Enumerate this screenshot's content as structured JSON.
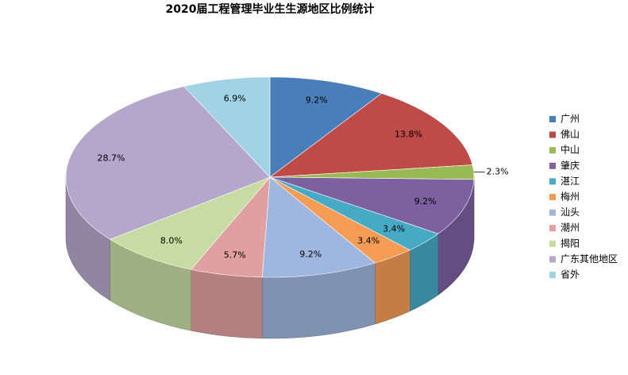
{
  "chart_data": {
    "type": "pie3d",
    "title": "2020届工程管理毕业生生源地区比例统计",
    "categories": [
      "广州",
      "佛山",
      "中山",
      "肇庆",
      "湛江",
      "梅州",
      "汕头",
      "潮州",
      "揭阳",
      "广东其他地区",
      "省外"
    ],
    "values": [
      9.2,
      13.8,
      2.3,
      9.2,
      3.4,
      3.4,
      9.2,
      5.7,
      8.0,
      28.7,
      6.9
    ],
    "value_labels": [
      "9.2%",
      "13.8%",
      "2.3%",
      "9.2%",
      "3.4%",
      "3.4%",
      "9.2%",
      "5.7%",
      "8.0%",
      "28.7%",
      "6.9%"
    ],
    "colors": [
      "#4a7ebb",
      "#be4b48",
      "#98b954",
      "#7d60a0",
      "#46aac5",
      "#f59d56",
      "#9fb6df",
      "#e0a09f",
      "#c7dca2",
      "#b5a6cc",
      "#a0d3e4"
    ],
    "legend": "right"
  }
}
